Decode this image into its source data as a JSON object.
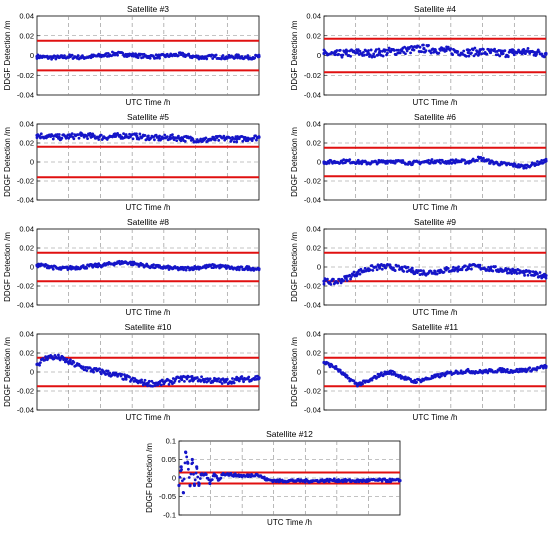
{
  "figure": {
    "background": "#ffffff"
  },
  "style": {
    "series_color": "#1515c8",
    "threshold_color": "#e01010",
    "grid_color": "#888888"
  },
  "chart_data": [
    {
      "type": "scatter",
      "title": "Satellite #3",
      "xlabel": "UTC Time /h",
      "ylabel": "DDGF Detection /m",
      "ylim": [
        -0.04,
        0.04
      ],
      "yticks": [
        -0.04,
        -0.02,
        0,
        0.02,
        0.04
      ],
      "grid": true,
      "thresholds": [
        0.015,
        -0.015
      ],
      "series": [
        {
          "x": [
            0,
            0.05,
            0.1,
            0.15,
            0.2,
            0.25,
            0.3,
            0.35,
            0.4,
            0.45,
            0.5,
            0.55,
            0.6,
            0.65,
            0.7,
            0.75,
            0.8,
            0.85,
            0.9,
            0.95,
            1
          ],
          "values": [
            -0.001,
            -0.002,
            -0.002,
            -0.001,
            -0.002,
            -0.001,
            0,
            0.002,
            0.001,
            0,
            -0.001,
            -0.001,
            0,
            0.001,
            -0.001,
            -0.002,
            -0.001,
            -0.002,
            -0.001,
            -0.002,
            -0.001
          ],
          "spread": 0.002
        }
      ]
    },
    {
      "type": "scatter",
      "title": "Satellite #4",
      "xlabel": "UTC Time /h",
      "ylabel": "DDGF Detection /m",
      "ylim": [
        -0.04,
        0.04
      ],
      "yticks": [
        -0.04,
        -0.02,
        0,
        0.02,
        0.04
      ],
      "grid": true,
      "thresholds": [
        0.017,
        -0.017
      ],
      "series": [
        {
          "x": [
            0,
            0.05,
            0.1,
            0.15,
            0.2,
            0.25,
            0.3,
            0.35,
            0.4,
            0.45,
            0.5,
            0.55,
            0.6,
            0.65,
            0.7,
            0.75,
            0.8,
            0.85,
            0.9,
            0.95,
            1
          ],
          "values": [
            0.002,
            0.001,
            0.002,
            0.003,
            0.002,
            0.003,
            0.004,
            0.005,
            0.006,
            0.007,
            0.006,
            0.005,
            0.004,
            0.003,
            0.004,
            0.003,
            0.002,
            0.003,
            0.004,
            0.003,
            0.002
          ],
          "spread": 0.004
        }
      ]
    },
    {
      "type": "scatter",
      "title": "Satellite #5",
      "xlabel": "UTC Time /h",
      "ylabel": "DDGF Detection /m",
      "ylim": [
        -0.04,
        0.04
      ],
      "yticks": [
        -0.04,
        -0.02,
        0,
        0.02,
        0.04
      ],
      "grid": true,
      "thresholds": [
        0.016,
        -0.016
      ],
      "series": [
        {
          "x": [
            0,
            0.05,
            0.1,
            0.15,
            0.2,
            0.25,
            0.3,
            0.35,
            0.4,
            0.45,
            0.5,
            0.55,
            0.6,
            0.65,
            0.7,
            0.75,
            0.8,
            0.85,
            0.9,
            0.95,
            1
          ],
          "values": [
            0.028,
            0.027,
            0.026,
            0.027,
            0.028,
            0.027,
            0.026,
            0.027,
            0.028,
            0.027,
            0.026,
            0.025,
            0.026,
            0.025,
            0.024,
            0.023,
            0.024,
            0.025,
            0.024,
            0.025,
            0.026
          ],
          "spread": 0.003
        }
      ]
    },
    {
      "type": "scatter",
      "title": "Satellite #6",
      "xlabel": "UTC Time /h",
      "ylabel": "DDGF Detection /m",
      "ylim": [
        -0.04,
        0.04
      ],
      "yticks": [
        -0.04,
        -0.02,
        0,
        0.02,
        0.04
      ],
      "grid": true,
      "thresholds": [
        0.015,
        -0.015
      ],
      "series": [
        {
          "x": [
            0,
            0.05,
            0.1,
            0.15,
            0.2,
            0.25,
            0.3,
            0.35,
            0.4,
            0.45,
            0.5,
            0.55,
            0.6,
            0.65,
            0.7,
            0.75,
            0.8,
            0.85,
            0.9,
            0.95,
            1
          ],
          "values": [
            0,
            0,
            0.001,
            0,
            -0.001,
            0,
            0.001,
            0,
            -0.001,
            0,
            0.001,
            0,
            0.001,
            0,
            0.004,
            0,
            -0.002,
            -0.003,
            -0.005,
            -0.002,
            0.001
          ],
          "spread": 0.002
        }
      ]
    },
    {
      "type": "scatter",
      "title": "Satellite #8",
      "xlabel": "UTC Time /h",
      "ylabel": "DDGF Detection /m",
      "ylim": [
        -0.04,
        0.04
      ],
      "yticks": [
        -0.04,
        -0.02,
        0,
        0.02,
        0.04
      ],
      "grid": true,
      "thresholds": [
        0.015,
        -0.015
      ],
      "series": [
        {
          "x": [
            0,
            0.05,
            0.1,
            0.15,
            0.2,
            0.25,
            0.3,
            0.35,
            0.4,
            0.45,
            0.5,
            0.55,
            0.6,
            0.65,
            0.7,
            0.75,
            0.8,
            0.85,
            0.9,
            0.95,
            1
          ],
          "values": [
            0.002,
            0.001,
            -0.002,
            -0.001,
            0,
            0.001,
            0.002,
            0.004,
            0.005,
            0.003,
            0.001,
            0,
            -0.001,
            -0.002,
            -0.001,
            0,
            0.001,
            0,
            -0.002,
            -0.001,
            -0.002
          ],
          "spread": 0.002
        }
      ]
    },
    {
      "type": "scatter",
      "title": "Satellite #9",
      "xlabel": "UTC Time /h",
      "ylabel": "DDGF Detection /m",
      "ylim": [
        -0.04,
        0.04
      ],
      "yticks": [
        -0.04,
        -0.02,
        0,
        0.02,
        0.04
      ],
      "grid": true,
      "thresholds": [
        0.015,
        -0.015
      ],
      "series": [
        {
          "x": [
            0,
            0.05,
            0.1,
            0.15,
            0.2,
            0.25,
            0.3,
            0.35,
            0.4,
            0.45,
            0.5,
            0.55,
            0.6,
            0.65,
            0.7,
            0.75,
            0.8,
            0.85,
            0.9,
            0.95,
            1
          ],
          "values": [
            -0.015,
            -0.016,
            -0.012,
            -0.006,
            -0.002,
            0,
            0,
            -0.002,
            -0.004,
            -0.006,
            -0.005,
            -0.003,
            -0.002,
            0,
            0,
            -0.002,
            -0.003,
            -0.004,
            -0.006,
            -0.008,
            -0.009
          ],
          "spread": 0.003
        }
      ]
    },
    {
      "type": "scatter",
      "title": "Satellite #10",
      "xlabel": "UTC Time /h",
      "ylabel": "DDGF Detection /m",
      "ylim": [
        -0.04,
        0.04
      ],
      "yticks": [
        -0.04,
        -0.02,
        0,
        0.02,
        0.04
      ],
      "grid": true,
      "thresholds": [
        0.015,
        -0.015
      ],
      "series": [
        {
          "x": [
            0,
            0.05,
            0.1,
            0.15,
            0.2,
            0.25,
            0.3,
            0.35,
            0.4,
            0.45,
            0.5,
            0.55,
            0.6,
            0.65,
            0.7,
            0.75,
            0.8,
            0.85,
            0.9,
            0.95,
            1
          ],
          "values": [
            0.008,
            0.016,
            0.015,
            0.01,
            0.005,
            0.002,
            0,
            -0.003,
            -0.006,
            -0.01,
            -0.012,
            -0.012,
            -0.01,
            -0.007,
            -0.007,
            -0.008,
            -0.009,
            -0.01,
            -0.008,
            -0.007,
            -0.006
          ],
          "spread": 0.003
        }
      ]
    },
    {
      "type": "scatter",
      "title": "Satellite #11",
      "xlabel": "UTC Time /h",
      "ylabel": "DDGF Detection /m",
      "ylim": [
        -0.04,
        0.04
      ],
      "yticks": [
        -0.04,
        -0.02,
        0,
        0.02,
        0.04
      ],
      "grid": true,
      "thresholds": [
        0.015,
        -0.015
      ],
      "series": [
        {
          "x": [
            0,
            0.05,
            0.1,
            0.15,
            0.2,
            0.25,
            0.3,
            0.35,
            0.4,
            0.45,
            0.5,
            0.55,
            0.6,
            0.65,
            0.7,
            0.75,
            0.8,
            0.85,
            0.9,
            0.95,
            1
          ],
          "values": [
            0.01,
            0.005,
            -0.005,
            -0.013,
            -0.01,
            -0.003,
            0,
            -0.005,
            -0.01,
            -0.008,
            -0.005,
            -0.002,
            0,
            0.001,
            0,
            0.001,
            0.002,
            0.001,
            0.002,
            0.003,
            0.006
          ],
          "spread": 0.002
        }
      ]
    },
    {
      "type": "scatter",
      "title": "Satellite #12",
      "xlabel": "UTC Time /h",
      "ylabel": "DDGF Detection /m",
      "ylim": [
        -0.1,
        0.1
      ],
      "yticks": [
        -0.1,
        -0.05,
        0,
        0.05,
        0.1
      ],
      "grid": true,
      "thresholds": [
        0.015,
        -0.015
      ],
      "series": [
        {
          "x": [
            0,
            0.01,
            0.02,
            0.03,
            0.04,
            0.05,
            0.06,
            0.07,
            0.08,
            0.09,
            0.1,
            0.12,
            0.14,
            0.16,
            0.18,
            0.2,
            0.25,
            0.3,
            0.35,
            0.4,
            0.45,
            0.5,
            0.6,
            0.7,
            0.8,
            0.9,
            1
          ],
          "values": [
            -0.02,
            0.03,
            -0.04,
            0.07,
            0.04,
            -0.02,
            0.05,
            -0.02,
            0.03,
            -0.02,
            0.01,
            0.01,
            -0.015,
            0.01,
            -0.005,
            0.012,
            0.008,
            0.005,
            0.01,
            -0.005,
            -0.008,
            -0.007,
            -0.008,
            -0.006,
            -0.008,
            -0.006,
            -0.007
          ],
          "spread": 0.004
        }
      ]
    }
  ]
}
